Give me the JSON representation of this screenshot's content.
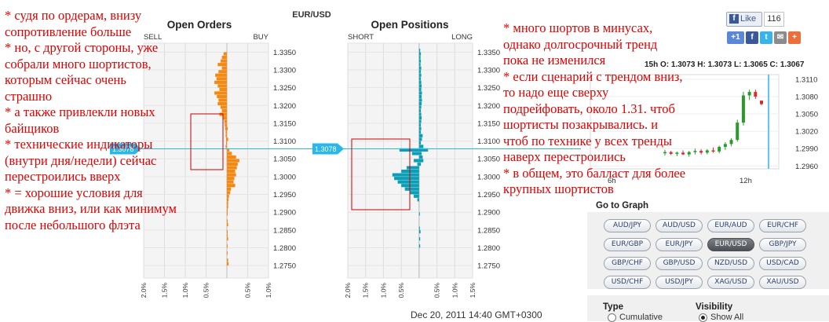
{
  "page": {
    "pair_title": "EUR/USD",
    "timestamp": "Dec 20, 2011 14:40 GMT+0300"
  },
  "notes": {
    "left": "* судя по ордерам, внизу\nсопротивление больше\n* но, с другой стороны, уже\nсобрали много шортистов,\nкоторым сейчас очень\nстрашно\n* а также привлекли новых\nбайщиков\n* технические индикаторы\n(внутри дня/недели) сейчас\nперестроились вверх\n* = хорошие условия для\nдвижка вниз, или как минимум\nпосле небольшого флэта",
    "right": "* много шортов в минусах,\nоднако долгосрочный тренд\nпока не изменился\n* если сценарий с трендом вниз,\nто надо еще сверху\nподрейфовать, около 1.31. чтоб\nшортисты позакрывались. и\nчтоб по технике у всех тренды\nнаверх перестроились\n* в общем, это балласт для более\nкрупных шортистов"
  },
  "social": {
    "like_label": "Like",
    "like_count": "116",
    "share_icons": [
      "google-plus-icon",
      "facebook-icon",
      "twitter-icon",
      "email-icon",
      "plus-icon"
    ]
  },
  "goto": {
    "title": "Go to Graph",
    "pairs": [
      "AUD/JPY",
      "AUD/USD",
      "EUR/AUD",
      "EUR/CHF",
      "EUR/GBP",
      "EUR/JPY",
      "EUR/USD",
      "GBP/JPY",
      "GBP/CHF",
      "GBP/USD",
      "NZD/USD",
      "USD/CAD",
      "USD/CHF",
      "USD/JPY",
      "XAG/USD",
      "XAU/USD"
    ],
    "active_pair": "EUR/USD"
  },
  "options": {
    "type_title": "Type",
    "type_value": "Cumulative",
    "visibility_title": "Visibility",
    "visibility_value": "Show All"
  },
  "colors": {
    "orders": "#f5880f",
    "positions": "#0a9fb7",
    "current_price_line": "#29b6e8",
    "annotation_red": "#e00000",
    "candle_green": "#2a9a2a",
    "candle_red": "#d32f2f"
  },
  "chart_data": [
    {
      "type": "bar",
      "title": "Open Orders",
      "orientation": "horizontal",
      "left_label": "SELL",
      "right_label": "BUY",
      "price_ticks": [
        "1.3350",
        "1.3300",
        "1.3250",
        "1.3200",
        "1.3150",
        "1.3100",
        "1.3050",
        "1.3000",
        "1.2950",
        "1.2900",
        "1.2850",
        "1.2800",
        "1.2750"
      ],
      "x_ticks": [
        "2.0%",
        "1.5%",
        "1.0%",
        "0.5%",
        "",
        "0.5%",
        "1.0%"
      ],
      "xlim": [
        -2.0,
        1.0
      ],
      "current_price": "1.3078",
      "series": [
        {
          "name": "SELL",
          "side": "left",
          "color": "#f5880f",
          "data": [
            [
              1.3345,
              0.08
            ],
            [
              1.3335,
              0.12
            ],
            [
              1.3325,
              0.15
            ],
            [
              1.3315,
              0.22
            ],
            [
              1.3305,
              0.12
            ],
            [
              1.3295,
              0.2
            ],
            [
              1.3285,
              0.28
            ],
            [
              1.3275,
              0.25
            ],
            [
              1.3265,
              0.3
            ],
            [
              1.3255,
              0.22
            ],
            [
              1.3245,
              0.18
            ],
            [
              1.3235,
              0.3
            ],
            [
              1.3225,
              0.24
            ],
            [
              1.3215,
              0.2
            ],
            [
              1.3205,
              0.22
            ],
            [
              1.3195,
              0.15
            ],
            [
              1.3185,
              0.12
            ],
            [
              1.3175,
              0.18
            ],
            [
              1.3165,
              0.1
            ],
            [
              1.3155,
              0.06
            ],
            [
              1.3145,
              0.05
            ],
            [
              1.3135,
              0.04
            ],
            [
              1.3125,
              0.03
            ],
            [
              1.3115,
              0.03
            ],
            [
              1.3105,
              0.02
            ],
            [
              1.3095,
              0.02
            ],
            [
              1.3085,
              0.03
            ]
          ]
        },
        {
          "name": "BUY",
          "side": "right",
          "color": "#f5880f",
          "data": [
            [
              1.3135,
              0.02
            ],
            [
              1.3105,
              0.03
            ],
            [
              1.3075,
              0.06
            ],
            [
              1.3065,
              0.12
            ],
            [
              1.3055,
              0.22
            ],
            [
              1.3045,
              0.3
            ],
            [
              1.3035,
              0.26
            ],
            [
              1.3025,
              0.24
            ],
            [
              1.3015,
              0.2
            ],
            [
              1.3005,
              0.22
            ],
            [
              1.2995,
              0.18
            ],
            [
              1.2985,
              0.16
            ],
            [
              1.2975,
              0.2
            ],
            [
              1.2965,
              0.1
            ],
            [
              1.2955,
              0.08
            ],
            [
              1.2945,
              0.05
            ],
            [
              1.2935,
              0.04
            ],
            [
              1.2925,
              0.03
            ],
            [
              1.2915,
              0.03
            ],
            [
              1.2905,
              0.02
            ],
            [
              1.2895,
              0.02
            ],
            [
              1.2875,
              0.02
            ],
            [
              1.2865,
              0.03
            ],
            [
              1.2845,
              0.02
            ],
            [
              1.2835,
              0.02
            ],
            [
              1.2825,
              0.03
            ],
            [
              1.2805,
              0.02
            ],
            [
              1.2785,
              0.02
            ],
            [
              1.2765,
              0.03
            ],
            [
              1.2755,
              0.04
            ]
          ]
        }
      ]
    },
    {
      "type": "bar",
      "title": "Open Positions",
      "orientation": "horizontal",
      "left_label": "SHORT",
      "right_label": "LONG",
      "price_ticks": [
        "1.3350",
        "1.3300",
        "1.3250",
        "1.3200",
        "1.3150",
        "1.3100",
        "1.3050",
        "1.3000",
        "1.2950",
        "1.2900",
        "1.2850",
        "1.2800",
        "1.2750"
      ],
      "x_ticks": [
        "2.0%",
        "1.5%",
        "1.0%",
        "0.5%",
        "",
        "0.5%",
        "1.0%",
        "1.5%"
      ],
      "xlim": [
        -2.0,
        1.5
      ],
      "current_price": "1.3078",
      "series": [
        {
          "name": "SHORT",
          "side": "left",
          "color": "#0a9fb7",
          "data": [
            [
              1.3075,
              0.55
            ],
            [
              1.3065,
              0.2
            ],
            [
              1.3045,
              0.15
            ],
            [
              1.3035,
              0.05
            ],
            [
              1.3025,
              0.35
            ],
            [
              1.3015,
              0.5
            ],
            [
              1.3005,
              0.75
            ],
            [
              1.2995,
              0.7
            ],
            [
              1.2985,
              0.6
            ],
            [
              1.2975,
              0.5
            ],
            [
              1.2965,
              0.4
            ],
            [
              1.2955,
              0.25
            ],
            [
              1.2945,
              0.15
            ],
            [
              1.2935,
              0.05
            ]
          ]
        },
        {
          "name": "LONG",
          "side": "right",
          "color": "#0a9fb7",
          "data": [
            [
              1.3355,
              0.03
            ],
            [
              1.3345,
              0.05
            ],
            [
              1.3335,
              0.04
            ],
            [
              1.3325,
              0.05
            ],
            [
              1.3315,
              0.04
            ],
            [
              1.3305,
              0.06
            ],
            [
              1.3295,
              0.05
            ],
            [
              1.3285,
              0.06
            ],
            [
              1.3275,
              0.05
            ],
            [
              1.3265,
              0.06
            ],
            [
              1.3255,
              0.07
            ],
            [
              1.3245,
              0.06
            ],
            [
              1.3235,
              0.08
            ],
            [
              1.3225,
              0.07
            ],
            [
              1.3215,
              0.08
            ],
            [
              1.3205,
              0.07
            ],
            [
              1.3195,
              0.06
            ],
            [
              1.3185,
              0.05
            ],
            [
              1.3175,
              0.06
            ],
            [
              1.3165,
              0.07
            ],
            [
              1.3155,
              0.06
            ],
            [
              1.3145,
              0.05
            ],
            [
              1.3135,
              0.06
            ],
            [
              1.3125,
              0.05
            ],
            [
              1.3115,
              0.1
            ],
            [
              1.3105,
              0.08
            ],
            [
              1.3095,
              0.05
            ],
            [
              1.3085,
              0.12
            ],
            [
              1.3075,
              0.25
            ],
            [
              1.3065,
              0.07
            ],
            [
              1.3055,
              0.1
            ],
            [
              1.3045,
              0.12
            ],
            [
              1.3035,
              0.05
            ],
            [
              1.2895,
              0.02
            ],
            [
              1.2855,
              0.02
            ],
            [
              1.2845,
              0.04
            ],
            [
              1.2825,
              0.03
            ],
            [
              1.2805,
              0.03
            ]
          ]
        }
      ]
    },
    {
      "type": "candlestick",
      "title": "15h O: 1.3073 H: 1.3073 L: 1.3065 C: 1.3067",
      "y_ticks": [
        "1.3110",
        "1.3080",
        "1.3050",
        "1.3020",
        "1.2990",
        "1.2960"
      ],
      "ylim": [
        1.2955,
        1.3118
      ],
      "x_ticks": [
        "6h",
        "12h"
      ],
      "candles": [
        [
          1.2982,
          1.2988,
          1.2978,
          1.2984
        ],
        [
          1.2984,
          1.2986,
          1.2979,
          1.2981
        ],
        [
          1.2981,
          1.2985,
          1.2977,
          1.2983
        ],
        [
          1.2983,
          1.2987,
          1.2979,
          1.298
        ],
        [
          1.298,
          1.2986,
          1.2976,
          1.2984
        ],
        [
          1.2984,
          1.299,
          1.298,
          1.2986
        ],
        [
          1.2986,
          1.2989,
          1.298,
          1.2983
        ],
        [
          1.2983,
          1.2989,
          1.298,
          1.2987
        ],
        [
          1.2987,
          1.2992,
          1.2983,
          1.2985
        ],
        [
          1.2985,
          1.2995,
          1.2982,
          1.2993
        ],
        [
          1.2993,
          1.3001,
          1.2988,
          1.2998
        ],
        [
          1.2998,
          1.3008,
          1.2994,
          1.3005
        ],
        [
          1.3005,
          1.304,
          1.3002,
          1.3035
        ],
        [
          1.3035,
          1.3088,
          1.303,
          1.3082
        ],
        [
          1.3082,
          1.3092,
          1.3074,
          1.3088
        ],
        [
          1.3088,
          1.3092,
          1.3076,
          1.308
        ],
        [
          1.3073,
          1.3073,
          1.3065,
          1.3067
        ]
      ]
    }
  ]
}
